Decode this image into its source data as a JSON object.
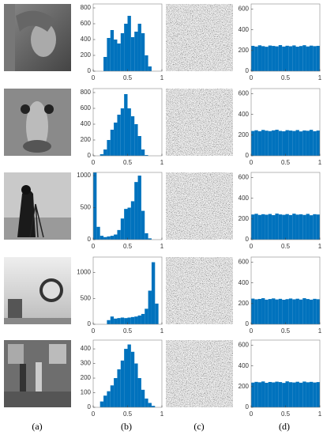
{
  "chart_data": [
    {
      "type": "histogram",
      "bins": [
        0,
        0.05,
        0.1,
        0.15,
        0.2,
        0.25,
        0.3,
        0.35,
        0.4,
        0.45,
        0.5,
        0.55,
        0.6,
        0.65,
        0.7,
        0.75,
        0.8,
        0.85,
        0.9,
        0.95,
        1
      ],
      "values": [
        0,
        0,
        0,
        180,
        420,
        520,
        400,
        350,
        480,
        600,
        700,
        430,
        500,
        600,
        480,
        200,
        60,
        0,
        0,
        0
      ],
      "color": "#0072bd",
      "xlim": [
        0,
        1
      ],
      "xticks": [
        0,
        0.5,
        1
      ],
      "ylim": [
        0,
        850
      ],
      "yticks": [
        0,
        200,
        400,
        600,
        800
      ]
    },
    {
      "type": "histogram",
      "bins": [
        0,
        0.05,
        0.1,
        0.15,
        0.2,
        0.25,
        0.3,
        0.35,
        0.4,
        0.45,
        0.5,
        0.55,
        0.6,
        0.65,
        0.7,
        0.75,
        0.8,
        0.85,
        0.9,
        0.95,
        1
      ],
      "values": [
        245,
        238,
        250,
        242,
        236,
        248,
        244,
        240,
        252,
        238,
        246,
        241,
        249,
        237,
        243,
        251,
        239,
        247,
        242,
        245
      ],
      "color": "#0072bd",
      "xlim": [
        0,
        1
      ],
      "xticks": [
        0,
        0.5,
        1
      ],
      "ylim": [
        0,
        650
      ],
      "yticks": [
        0,
        200,
        400,
        600
      ]
    },
    {
      "type": "histogram",
      "bins": [
        0,
        0.05,
        0.1,
        0.15,
        0.2,
        0.25,
        0.3,
        0.35,
        0.4,
        0.45,
        0.5,
        0.55,
        0.6,
        0.65,
        0.7,
        0.75,
        0.8,
        0.85,
        0.9,
        0.95,
        1
      ],
      "values": [
        0,
        0,
        20,
        80,
        200,
        330,
        420,
        520,
        600,
        780,
        600,
        500,
        400,
        250,
        80,
        10,
        0,
        0,
        0,
        0
      ],
      "color": "#0072bd",
      "xlim": [
        0,
        1
      ],
      "xticks": [
        0,
        0.5,
        1
      ],
      "ylim": [
        0,
        850
      ],
      "yticks": [
        0,
        200,
        400,
        600,
        800
      ]
    },
    {
      "type": "histogram",
      "bins": [
        0,
        0.05,
        0.1,
        0.15,
        0.2,
        0.25,
        0.3,
        0.35,
        0.4,
        0.45,
        0.5,
        0.55,
        0.6,
        0.65,
        0.7,
        0.75,
        0.8,
        0.85,
        0.9,
        0.95,
        1
      ],
      "values": [
        240,
        247,
        238,
        250,
        243,
        239,
        246,
        252,
        241,
        237,
        248,
        244,
        240,
        249,
        236,
        245,
        242,
        251,
        238,
        244
      ],
      "color": "#0072bd",
      "xlim": [
        0,
        1
      ],
      "xticks": [
        0,
        0.5,
        1
      ],
      "ylim": [
        0,
        650
      ],
      "yticks": [
        0,
        200,
        400,
        600
      ]
    },
    {
      "type": "histogram",
      "bins": [
        0,
        0.05,
        0.1,
        0.15,
        0.2,
        0.25,
        0.3,
        0.35,
        0.4,
        0.45,
        0.5,
        0.55,
        0.6,
        0.65,
        0.7,
        0.75,
        0.8,
        0.85,
        0.9,
        0.95,
        1
      ],
      "values": [
        1050,
        200,
        60,
        40,
        50,
        60,
        80,
        150,
        330,
        480,
        500,
        600,
        900,
        1000,
        450,
        100,
        20,
        0,
        0,
        0
      ],
      "color": "#0072bd",
      "xlim": [
        0,
        1
      ],
      "xticks": [
        0,
        0.5,
        1
      ],
      "ylim": [
        0,
        1050
      ],
      "yticks": [
        0,
        500,
        1000
      ]
    },
    {
      "type": "histogram",
      "bins": [
        0,
        0.05,
        0.1,
        0.15,
        0.2,
        0.25,
        0.3,
        0.35,
        0.4,
        0.45,
        0.5,
        0.55,
        0.6,
        0.65,
        0.7,
        0.75,
        0.8,
        0.85,
        0.9,
        0.95,
        1
      ],
      "values": [
        243,
        250,
        239,
        246,
        241,
        248,
        237,
        252,
        244,
        240,
        247,
        238,
        251,
        242,
        245,
        239,
        249,
        236,
        246,
        243
      ],
      "color": "#0072bd",
      "xlim": [
        0,
        1
      ],
      "xticks": [
        0,
        0.5,
        1
      ],
      "ylim": [
        0,
        650
      ],
      "yticks": [
        0,
        200,
        400,
        600
      ]
    },
    {
      "type": "histogram",
      "bins": [
        0,
        0.05,
        0.1,
        0.15,
        0.2,
        0.25,
        0.3,
        0.35,
        0.4,
        0.45,
        0.5,
        0.55,
        0.6,
        0.65,
        0.7,
        0.75,
        0.8,
        0.85,
        0.9,
        0.95,
        1
      ],
      "values": [
        0,
        0,
        0,
        0,
        80,
        150,
        110,
        120,
        130,
        120,
        130,
        140,
        150,
        170,
        200,
        300,
        650,
        1200,
        400,
        0
      ],
      "color": "#0072bd",
      "xlim": [
        0,
        1
      ],
      "xticks": [
        0,
        0.5,
        1
      ],
      "ylim": [
        0,
        1300
      ],
      "yticks": [
        0,
        500,
        1000
      ]
    },
    {
      "type": "histogram",
      "bins": [
        0,
        0.05,
        0.1,
        0.15,
        0.2,
        0.25,
        0.3,
        0.35,
        0.4,
        0.45,
        0.5,
        0.55,
        0.6,
        0.65,
        0.7,
        0.75,
        0.8,
        0.85,
        0.9,
        0.95,
        1
      ],
      "values": [
        248,
        241,
        245,
        252,
        238,
        244,
        250,
        240,
        246,
        237,
        243,
        249,
        241,
        247,
        239,
        252,
        244,
        238,
        246,
        242
      ],
      "color": "#0072bd",
      "xlim": [
        0,
        1
      ],
      "xticks": [
        0,
        0.5,
        1
      ],
      "ylim": [
        0,
        650
      ],
      "yticks": [
        0,
        200,
        400,
        600
      ]
    },
    {
      "type": "histogram",
      "bins": [
        0,
        0.05,
        0.1,
        0.15,
        0.2,
        0.25,
        0.3,
        0.35,
        0.4,
        0.45,
        0.5,
        0.55,
        0.6,
        0.65,
        0.7,
        0.75,
        0.8,
        0.85,
        0.9,
        0.95,
        1
      ],
      "values": [
        0,
        0,
        40,
        80,
        110,
        150,
        200,
        260,
        320,
        400,
        430,
        380,
        300,
        200,
        120,
        60,
        30,
        10,
        0,
        0
      ],
      "color": "#0072bd",
      "xlim": [
        0,
        1
      ],
      "xticks": [
        0,
        0.5,
        1
      ],
      "ylim": [
        0,
        460
      ],
      "yticks": [
        0,
        100,
        200,
        300,
        400
      ]
    },
    {
      "type": "histogram",
      "bins": [
        0,
        0.05,
        0.1,
        0.15,
        0.2,
        0.25,
        0.3,
        0.35,
        0.4,
        0.45,
        0.5,
        0.55,
        0.6,
        0.65,
        0.7,
        0.75,
        0.8,
        0.85,
        0.9,
        0.95,
        1
      ],
      "values": [
        239,
        246,
        242,
        250,
        237,
        245,
        241,
        248,
        244,
        236,
        251,
        243,
        240,
        247,
        238,
        249,
        242,
        246,
        240,
        244
      ],
      "color": "#0072bd",
      "xlim": [
        0,
        1
      ],
      "xticks": [
        0,
        0.5,
        1
      ],
      "ylim": [
        0,
        650
      ],
      "yticks": [
        0,
        200,
        400,
        600
      ]
    }
  ],
  "panel_labels": [
    "(a)",
    "(b)",
    "(c)",
    "(d)"
  ]
}
